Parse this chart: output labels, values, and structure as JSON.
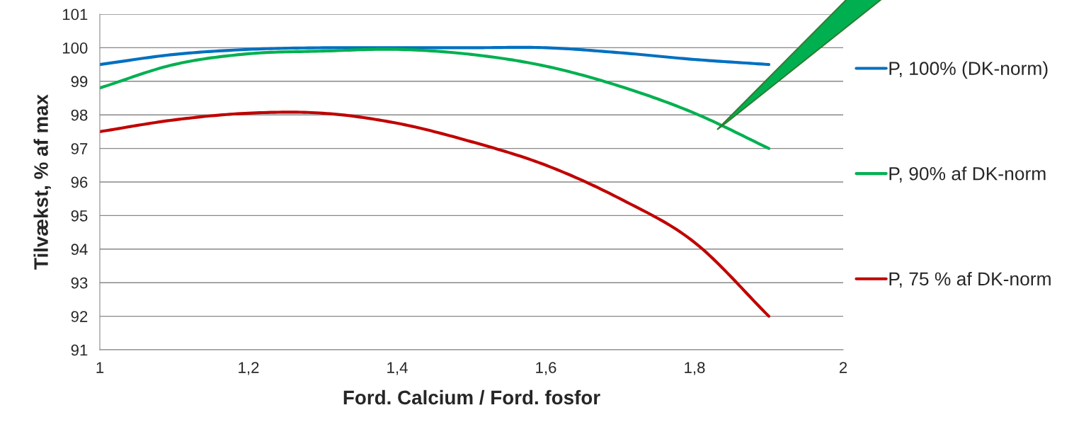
{
  "chart_data": {
    "type": "line",
    "xlabel": "Ford. Calcium / Ford. fosfor",
    "ylabel": "Tilvækst, % af max",
    "x": [
      1.0,
      1.1,
      1.2,
      1.3,
      1.4,
      1.5,
      1.6,
      1.7,
      1.8,
      1.9
    ],
    "series": [
      {
        "name": "P, 100% (DK-norm)",
        "color": "#0070c0",
        "values": [
          99.5,
          99.8,
          99.95,
          100,
          100,
          100,
          100,
          99.85,
          99.65,
          99.5
        ]
      },
      {
        "name": "P, 90% af DK-norm",
        "color": "#00b050",
        "values": [
          98.8,
          99.5,
          99.82,
          99.9,
          99.95,
          99.8,
          99.45,
          98.85,
          98.05,
          97
        ]
      },
      {
        "name": "P, 75 % af DK-norm",
        "color": "#c00000",
        "values": [
          97.5,
          97.85,
          98.05,
          98.05,
          97.75,
          97.2,
          96.5,
          95.5,
          94.2,
          92
        ]
      }
    ],
    "xlim": [
      1,
      2
    ],
    "xticks": [
      {
        "value": 1,
        "label": "1"
      },
      {
        "value": 1.2,
        "label": "1,2"
      },
      {
        "value": 1.4,
        "label": "1,4"
      },
      {
        "value": 1.6,
        "label": "1,6"
      },
      {
        "value": 1.8,
        "label": "1,8"
      },
      {
        "value": 2,
        "label": "2"
      }
    ],
    "ylim": [
      91,
      101
    ],
    "yticks": [
      91,
      92,
      93,
      94,
      95,
      96,
      97,
      98,
      99,
      100,
      101
    ],
    "grid": "y",
    "legend": "right",
    "marker": "none",
    "line_style": "solid"
  }
}
